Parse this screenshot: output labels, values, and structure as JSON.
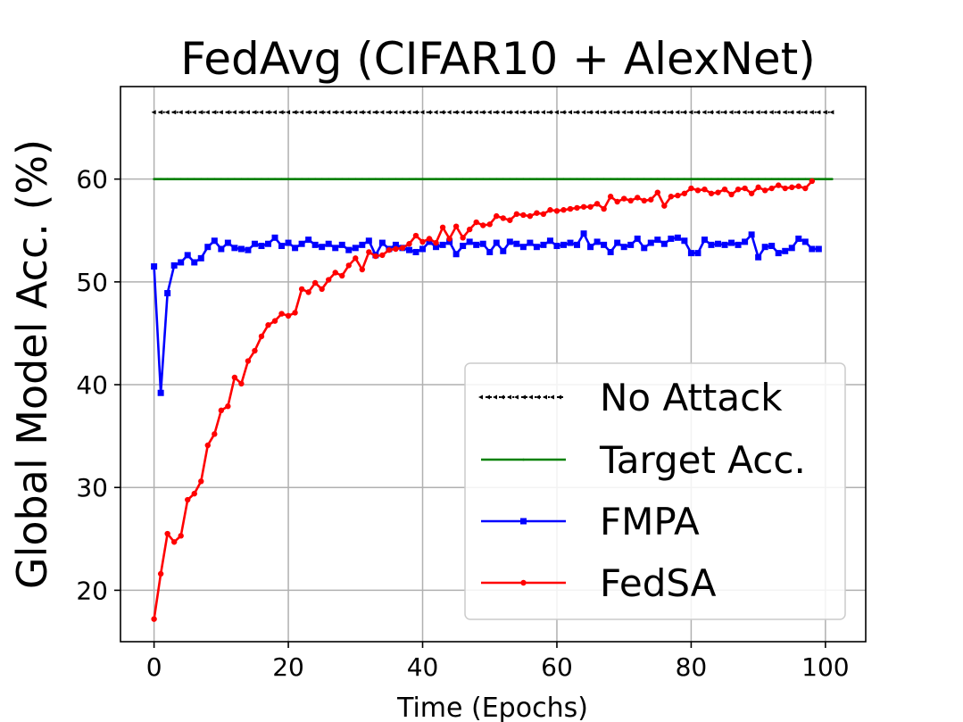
{
  "chart_data": {
    "type": "line",
    "title": "FedAvg (CIFAR10 + AlexNet)",
    "xlabel": "Time (Epochs)",
    "ylabel": "Global Model Acc. (%)",
    "xlim": [
      -5,
      106
    ],
    "ylim": [
      15,
      69
    ],
    "xticks": [
      0,
      20,
      40,
      60,
      80,
      100
    ],
    "yticks": [
      20,
      30,
      40,
      50,
      60
    ],
    "grid": true,
    "legend_position": "lower-right",
    "series": [
      {
        "name": "No Attack",
        "color": "#000000",
        "style": "dotted",
        "marker": "tri-left",
        "x": [
          0,
          101
        ],
        "y": [
          66.5,
          66.5
        ]
      },
      {
        "name": "Target Acc.",
        "color": "#008000",
        "style": "solid",
        "marker": "tri-small",
        "x": [
          0,
          101
        ],
        "y": [
          60.0,
          60.0
        ]
      },
      {
        "name": "FMPA",
        "color": "#0000ff",
        "style": "solid",
        "marker": "square",
        "y": [
          51.5,
          39.2,
          48.9,
          51.6,
          51.9,
          52.6,
          51.9,
          52.3,
          53.4,
          54.0,
          53.2,
          53.8,
          53.3,
          53.2,
          53.1,
          53.7,
          53.5,
          53.7,
          54.3,
          53.5,
          53.8,
          53.3,
          53.7,
          54.1,
          53.6,
          53.4,
          53.7,
          53.3,
          53.6,
          53.1,
          53.3,
          53.6,
          54.0,
          52.6,
          53.8,
          53.2,
          53.6,
          53.3,
          53.1,
          52.9,
          53.2,
          53.9,
          53.4,
          53.6,
          53.9,
          52.7,
          53.5,
          53.9,
          53.6,
          53.7,
          52.9,
          53.8,
          53.0,
          53.9,
          53.7,
          53.4,
          53.8,
          53.4,
          53.6,
          54.0,
          53.5,
          53.6,
          53.8,
          53.6,
          54.7,
          53.4,
          53.9,
          53.6,
          52.9,
          53.8,
          53.4,
          53.6,
          54.2,
          53.3,
          53.8,
          54.1,
          53.7,
          54.2,
          54.3,
          54.0,
          52.8,
          52.8,
          54.1,
          53.6,
          53.7,
          53.6,
          53.8,
          53.6,
          53.9,
          54.6,
          52.4,
          53.4,
          53.5,
          52.8,
          53.0,
          53.3,
          54.2,
          53.9,
          53.2,
          53.2
        ]
      },
      {
        "name": "FedSA",
        "color": "#ff0000",
        "style": "solid",
        "marker": "circle",
        "y": [
          17.2,
          21.6,
          25.5,
          24.7,
          25.3,
          28.8,
          29.4,
          30.6,
          34.1,
          35.2,
          37.5,
          37.9,
          40.7,
          40.1,
          42.3,
          43.3,
          44.7,
          45.8,
          46.2,
          46.9,
          46.7,
          47.0,
          49.3,
          49.0,
          49.9,
          49.3,
          50.2,
          50.9,
          50.6,
          51.6,
          52.3,
          51.2,
          52.9,
          52.5,
          52.6,
          53.1,
          53.2,
          53.3,
          53.7,
          54.5,
          53.9,
          54.2,
          53.8,
          55.3,
          54.2,
          55.4,
          54.3,
          55.1,
          55.8,
          55.5,
          55.6,
          56.4,
          56.2,
          56.0,
          56.6,
          56.5,
          56.4,
          56.7,
          56.6,
          57.0,
          56.9,
          57.0,
          57.1,
          57.2,
          57.3,
          57.3,
          57.6,
          57.1,
          58.3,
          57.8,
          58.1,
          57.9,
          58.2,
          57.9,
          58.0,
          58.7,
          57.4,
          58.3,
          58.4,
          58.6,
          59.1,
          58.9,
          59.0,
          58.6,
          58.7,
          59.0,
          58.5,
          59.0,
          59.1,
          58.6,
          59.2,
          58.9,
          59.1,
          59.4,
          59.1,
          59.2,
          59.3,
          59.1,
          59.8
        ]
      }
    ]
  }
}
